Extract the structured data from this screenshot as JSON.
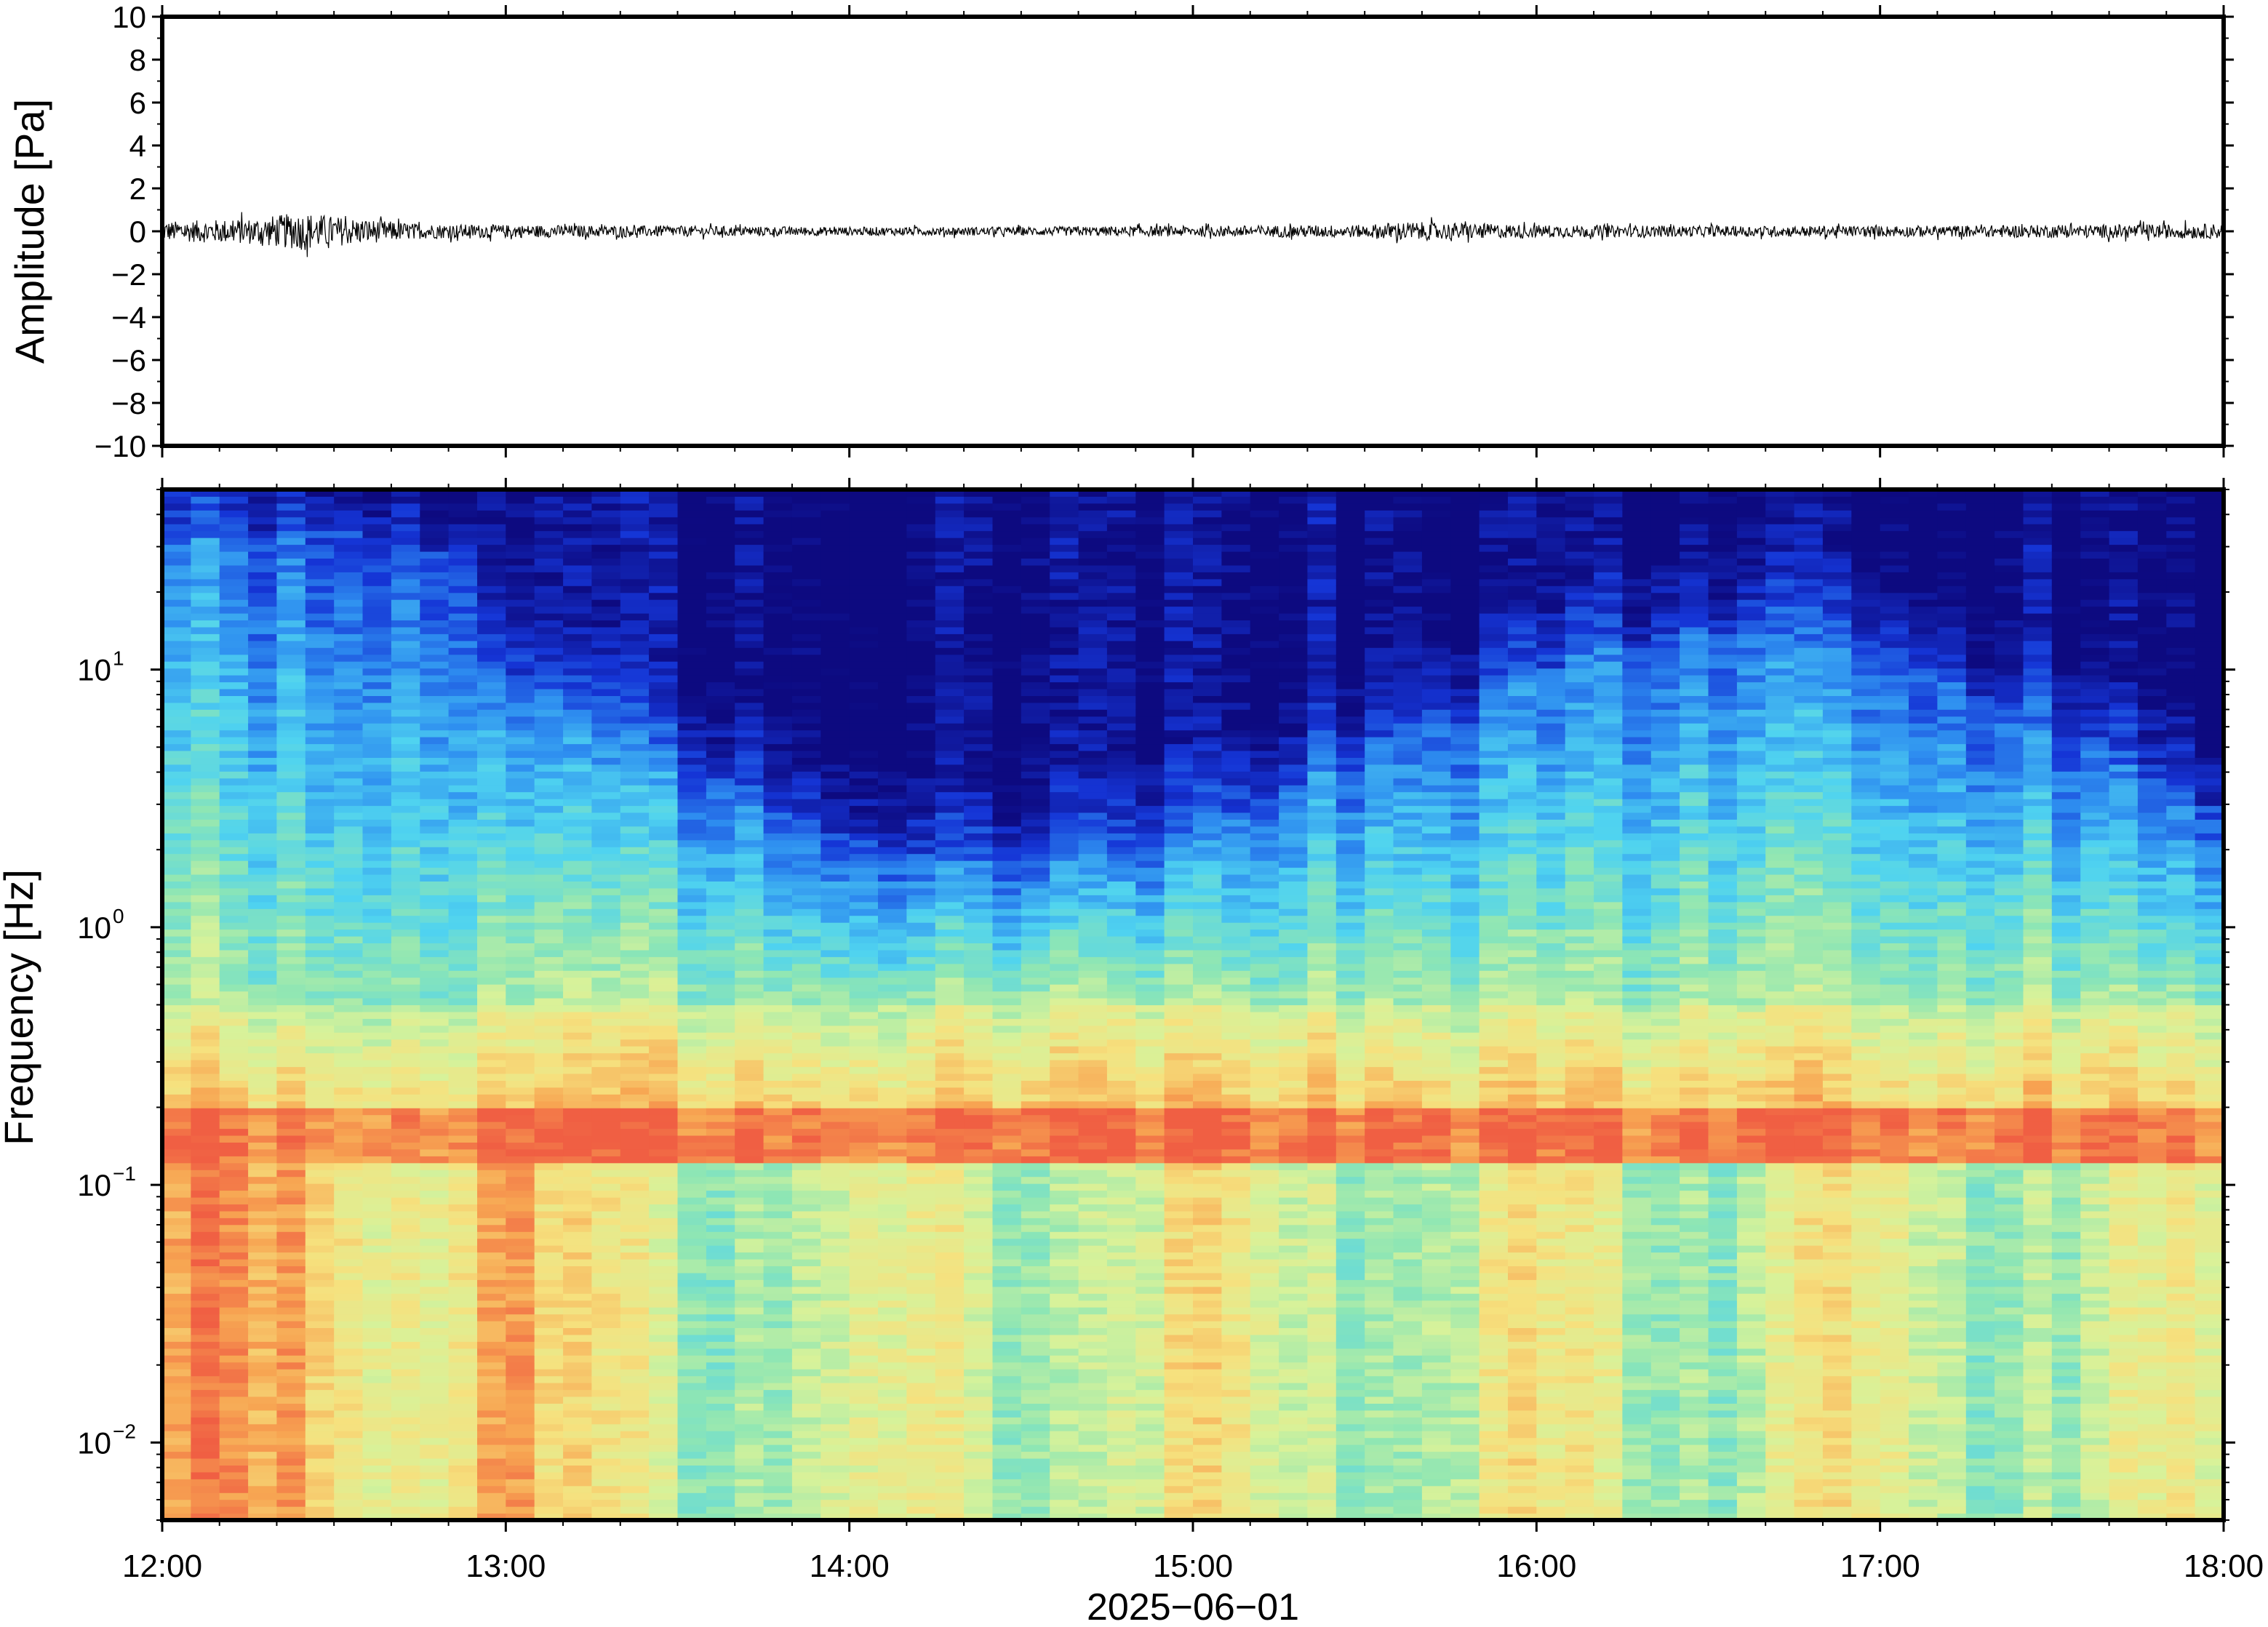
{
  "chart_data": [
    {
      "type": "line",
      "panel": "waveform",
      "ylabel": "Amplitude [Pa]",
      "ylim": [
        -10,
        10
      ],
      "yticks": [
        -10,
        -8,
        -6,
        -4,
        -2,
        0,
        2,
        4,
        6,
        8,
        10
      ],
      "ytick_labels": [
        "−10",
        "−8",
        "−6",
        "−4",
        "−2",
        "0",
        "2",
        "4",
        "6",
        "8",
        "10"
      ],
      "xlim": [
        "12:00",
        "18:00"
      ],
      "series": [
        {
          "color": "#000000",
          "x": [
            "12:00",
            "12:15",
            "12:25",
            "12:30",
            "12:45",
            "13:00",
            "13:30",
            "14:00",
            "14:30",
            "15:00",
            "15:30",
            "15:36",
            "16:00",
            "16:30",
            "17:00",
            "17:30",
            "18:00"
          ],
          "envelope": [
            0.45,
            0.6,
            0.9,
            0.7,
            0.35,
            0.3,
            0.25,
            0.2,
            0.2,
            0.25,
            0.3,
            0.45,
            0.3,
            0.25,
            0.25,
            0.3,
            0.35
          ]
        }
      ],
      "grid": false
    },
    {
      "type": "heatmap",
      "panel": "spectrogram",
      "ylabel": "Frequency [Hz]",
      "xlabel": "2025−06−01",
      "yscale": "log",
      "ylim": [
        0.005,
        50
      ],
      "yticks": [
        0.01,
        0.1,
        1,
        10
      ],
      "ytick_labels": [
        {
          "base": "10",
          "exp": "−2"
        },
        {
          "base": "10",
          "exp": "−1"
        },
        {
          "base": "10",
          "exp": "0"
        },
        {
          "base": "10",
          "exp": "1"
        }
      ],
      "x_ticks": [
        "12:00",
        "13:00",
        "14:00",
        "15:00",
        "16:00",
        "17:00",
        "18:00"
      ],
      "colormap": [
        "#0d0a80",
        "#1535d6",
        "#2e8ef0",
        "#4fd3f0",
        "#8ee6b4",
        "#d7f29a",
        "#f6e17e",
        "#f7a552",
        "#f05f43"
      ],
      "bands": [
        {
          "freq_range": [
            0.12,
            0.2
          ],
          "level": "high",
          "color": "#f05f43"
        },
        {
          "freq_range": [
            0.2,
            0.5
          ],
          "level": "medium-high",
          "color": "#f6e17e"
        },
        {
          "freq_range": [
            0.5,
            5
          ],
          "level": "medium",
          "color": "#4fd3f0"
        },
        {
          "freq_range": [
            5,
            50
          ],
          "level": "low",
          "color": "#0d0a80"
        }
      ],
      "grid": false
    }
  ]
}
